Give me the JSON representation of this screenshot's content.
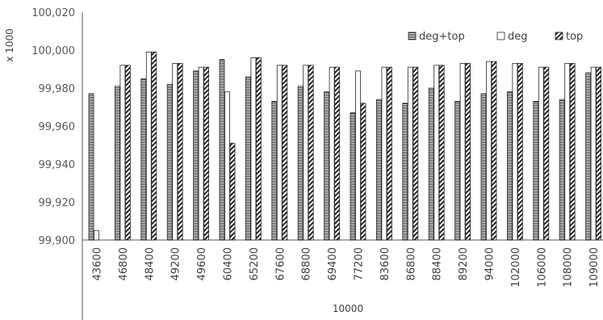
{
  "chart_data": {
    "type": "bar",
    "categories": [
      "43600",
      "46800",
      "48400",
      "49200",
      "49600",
      "60400",
      "65200",
      "67600",
      "68800",
      "69400",
      "77200",
      "83600",
      "86800",
      "88400",
      "89200",
      "94000",
      "102000",
      "106000",
      "108000",
      "109000"
    ],
    "series": [
      {
        "name": "deg+top",
        "pattern": "horizontal-lines",
        "values": [
          99977,
          99981,
          99985,
          99982,
          99989,
          99995,
          99986,
          99973,
          99981,
          99978,
          99967,
          99974,
          99972,
          99980,
          99973,
          99977,
          99978,
          99973,
          99974,
          99988
        ]
      },
      {
        "name": "deg",
        "pattern": "white",
        "values": [
          99905,
          99992,
          99999,
          99993,
          99991,
          99978,
          99996,
          99992,
          99992,
          99991,
          99989,
          99991,
          99991,
          99992,
          99993,
          99994,
          99993,
          99991,
          99993,
          99991
        ]
      },
      {
        "name": "top",
        "pattern": "diagonal-hatch",
        "values": [
          null,
          99992,
          99999,
          99993,
          99991,
          99951,
          99996,
          99992,
          99992,
          99991,
          99972,
          99991,
          99991,
          99992,
          99993,
          99994,
          99993,
          99991,
          99993,
          99991
        ]
      }
    ],
    "ylim": [
      99900,
      100020
    ],
    "yticks": [
      "100,020",
      "100,000",
      "99,980",
      "99,960",
      "99,940",
      "99,920",
      "99,900"
    ],
    "ylabel": "x 1000",
    "xlabel": "10000",
    "legend_position": "top-right",
    "grid": false
  }
}
